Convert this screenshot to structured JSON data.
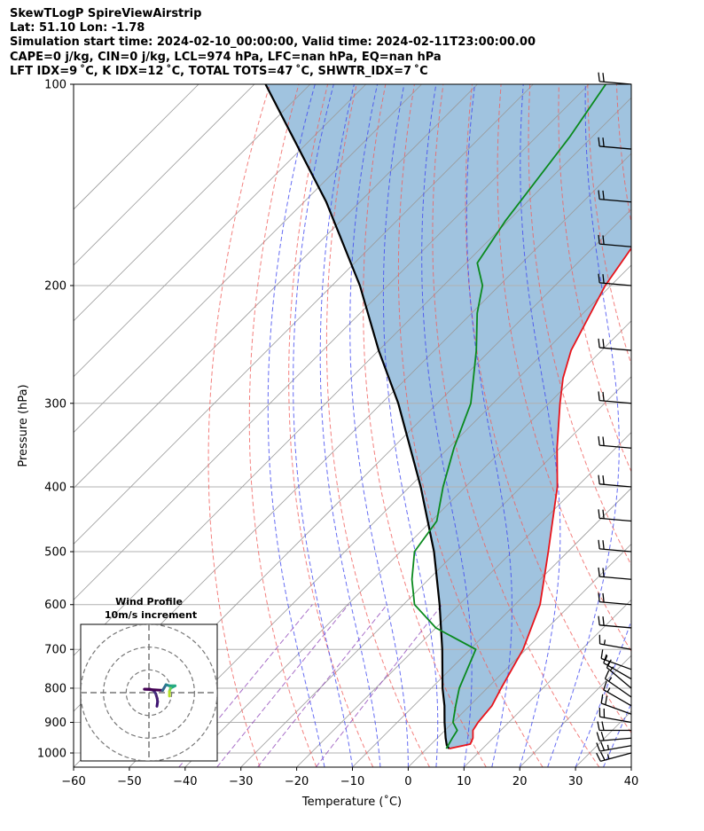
{
  "header": {
    "line1": "SkewTLogP SpireViewAirstrip",
    "line2": "Lat: 51.10   Lon: -1.78",
    "line3": "Simulation start time: 2024-02-10_00:00:00, Valid time: 2024-02-11T23:00:00.00",
    "line4": "CAPE=0 j/kg, CIN=0 j/kg, LCL=974 hPa, LFC=nan hPa, EQ=nan hPa",
    "line5": "LFT IDX=9 ˚C, K IDX=12 ˚C, TOTAL TOTS=47 ˚C, SHWTR_IDX=7 ˚C"
  },
  "colors": {
    "temperature": "#e8141b",
    "dewpoint": "#0a8a1e",
    "parcel": "#000000",
    "cape_fill": "#8fb9d9",
    "dry_adiabat": "#f0605e",
    "moist_adiabat": "#3f47f0",
    "mixing_ratio": "#8b3fb6",
    "isotherm": "#9a9a9a",
    "grid": "#b0b0b0"
  },
  "chart_data": {
    "type": "skew-t log-p",
    "xlabel": "Temperature (˚C)",
    "ylabel": "Pressure (hPa)",
    "xlim": [
      -60,
      40
    ],
    "ylim": [
      1050,
      100
    ],
    "x_ticks": [
      "−60",
      "−50",
      "−40",
      "−30",
      "−20",
      "−10",
      "0",
      "10",
      "20",
      "30",
      "40"
    ],
    "y_ticks": [
      {
        "p": 1000,
        "label": "1000"
      },
      {
        "p": 900,
        "label": "900"
      },
      {
        "p": 800,
        "label": "800"
      },
      {
        "p": 700,
        "label": "700"
      },
      {
        "p": 600,
        "label": "600"
      },
      {
        "p": 500,
        "label": "500"
      },
      {
        "p": 400,
        "label": "400"
      },
      {
        "p": 300,
        "label": "300"
      },
      {
        "p": 200,
        "label": "200"
      },
      {
        "p": 100,
        "label": "100"
      }
    ],
    "temperature_profile": [
      {
        "p": 985,
        "t": 4.0
      },
      {
        "p": 970,
        "t": 7.0
      },
      {
        "p": 950,
        "t": 6.4
      },
      {
        "p": 925,
        "t": 5.0
      },
      {
        "p": 900,
        "t": 4.5
      },
      {
        "p": 850,
        "t": 4.0
      },
      {
        "p": 800,
        "t": 2.5
      },
      {
        "p": 700,
        "t": -0.5
      },
      {
        "p": 600,
        "t": -5.5
      },
      {
        "p": 500,
        "t": -13.5
      },
      {
        "p": 400,
        "t": -23.5
      },
      {
        "p": 350,
        "t": -30.5
      },
      {
        "p": 300,
        "t": -38.0
      },
      {
        "p": 275,
        "t": -42.0
      },
      {
        "p": 250,
        "t": -45.5
      },
      {
        "p": 200,
        "t": -51.0
      },
      {
        "p": 150,
        "t": -55.5
      },
      {
        "p": 120,
        "t": -58.0
      },
      {
        "p": 100,
        "t": -60.0
      }
    ],
    "dewpoint_profile": [
      {
        "p": 985,
        "t": 3.5
      },
      {
        "p": 950,
        "t": 2.7
      },
      {
        "p": 925,
        "t": 2.2
      },
      {
        "p": 900,
        "t": 0.0
      },
      {
        "p": 850,
        "t": -2.5
      },
      {
        "p": 800,
        "t": -5.0
      },
      {
        "p": 700,
        "t": -9.0
      },
      {
        "p": 650,
        "t": -20.0
      },
      {
        "p": 600,
        "t": -28.0
      },
      {
        "p": 550,
        "t": -33.0
      },
      {
        "p": 500,
        "t": -37.5
      },
      {
        "p": 450,
        "t": -39.0
      },
      {
        "p": 400,
        "t": -44.0
      },
      {
        "p": 350,
        "t": -49.0
      },
      {
        "p": 300,
        "t": -54.0
      },
      {
        "p": 250,
        "t": -62.5
      },
      {
        "p": 220,
        "t": -69.0
      },
      {
        "p": 200,
        "t": -73.0
      },
      {
        "p": 185,
        "t": -78.0
      },
      {
        "p": 160,
        "t": -80.5
      },
      {
        "p": 120,
        "t": -84.0
      },
      {
        "p": 100,
        "t": -87.0
      }
    ],
    "parcel_profile": [
      {
        "p": 985,
        "t": 4.0
      },
      {
        "p": 974,
        "t": 3.0
      },
      {
        "p": 950,
        "t": 1.5
      },
      {
        "p": 900,
        "t": -1.5
      },
      {
        "p": 850,
        "t": -4.5
      },
      {
        "p": 800,
        "t": -8.0
      },
      {
        "p": 700,
        "t": -15.0
      },
      {
        "p": 600,
        "t": -23.5
      },
      {
        "p": 500,
        "t": -34.0
      },
      {
        "p": 400,
        "t": -48.0
      },
      {
        "p": 300,
        "t": -67.0
      },
      {
        "p": 250,
        "t": -80.0
      },
      {
        "p": 200,
        "t": -95.0
      },
      {
        "p": 150,
        "t": -116.0
      },
      {
        "p": 100,
        "t": -148.0
      }
    ],
    "wind_barbs": [
      {
        "p": 1000,
        "dir": 255,
        "kt": 25
      },
      {
        "p": 975,
        "dir": 260,
        "kt": 25
      },
      {
        "p": 950,
        "dir": 265,
        "kt": 20
      },
      {
        "p": 925,
        "dir": 270,
        "kt": 20
      },
      {
        "p": 900,
        "dir": 280,
        "kt": 20
      },
      {
        "p": 875,
        "dir": 290,
        "kt": 20
      },
      {
        "p": 850,
        "dir": 300,
        "kt": 15
      },
      {
        "p": 825,
        "dir": 305,
        "kt": 15
      },
      {
        "p": 800,
        "dir": 310,
        "kt": 15
      },
      {
        "p": 775,
        "dir": 300,
        "kt": 15
      },
      {
        "p": 750,
        "dir": 290,
        "kt": 15
      },
      {
        "p": 700,
        "dir": 280,
        "kt": 15
      },
      {
        "p": 650,
        "dir": 275,
        "kt": 20
      },
      {
        "p": 600,
        "dir": 275,
        "kt": 20
      },
      {
        "p": 550,
        "dir": 275,
        "kt": 20
      },
      {
        "p": 500,
        "dir": 275,
        "kt": 20
      },
      {
        "p": 450,
        "dir": 275,
        "kt": 20
      },
      {
        "p": 400,
        "dir": 275,
        "kt": 20
      },
      {
        "p": 350,
        "dir": 275,
        "kt": 20
      },
      {
        "p": 300,
        "dir": 275,
        "kt": 20
      },
      {
        "p": 250,
        "dir": 275,
        "kt": 20
      },
      {
        "p": 200,
        "dir": 275,
        "kt": 20
      },
      {
        "p": 175,
        "dir": 275,
        "kt": 20
      },
      {
        "p": 150,
        "dir": 275,
        "kt": 20
      },
      {
        "p": 125,
        "dir": 275,
        "kt": 20
      },
      {
        "p": 100,
        "dir": 275,
        "kt": 20
      }
    ],
    "hodograph": {
      "title": "Wind Profile",
      "subtitle": "10m/s increment",
      "rings_ms": [
        10,
        20,
        30
      ],
      "range_ms": 30,
      "points": [
        {
          "u": 3.5,
          "v": -6.0,
          "c": "#3b0f70"
        },
        {
          "u": 3.8,
          "v": -4.0,
          "c": "#451d75"
        },
        {
          "u": 3.6,
          "v": -2.5,
          "c": "#482173"
        },
        {
          "u": 3.0,
          "v": -0.5,
          "c": "#46307e"
        },
        {
          "u": 2.0,
          "v": 1.0,
          "c": "#472d7b"
        },
        {
          "u": 0.5,
          "v": 1.5,
          "c": "#440154"
        },
        {
          "u": -2.0,
          "v": 1.5,
          "c": "#440154"
        },
        {
          "u": 6.0,
          "v": 1.0,
          "c": "#31688e"
        },
        {
          "u": 7.5,
          "v": 3.5,
          "c": "#26828e"
        },
        {
          "u": 9.0,
          "v": 3.0,
          "c": "#1f9e89"
        },
        {
          "u": 10.5,
          "v": 3.0,
          "c": "#35b779"
        },
        {
          "u": 11.5,
          "v": 3.0,
          "c": "#22a884"
        },
        {
          "u": 9.5,
          "v": 2.0,
          "c": "#6ece58"
        },
        {
          "u": 9.0,
          "v": 0.5,
          "c": "#b5de2b"
        },
        {
          "u": 9.0,
          "v": -1.5,
          "c": "#fde725"
        }
      ]
    }
  }
}
